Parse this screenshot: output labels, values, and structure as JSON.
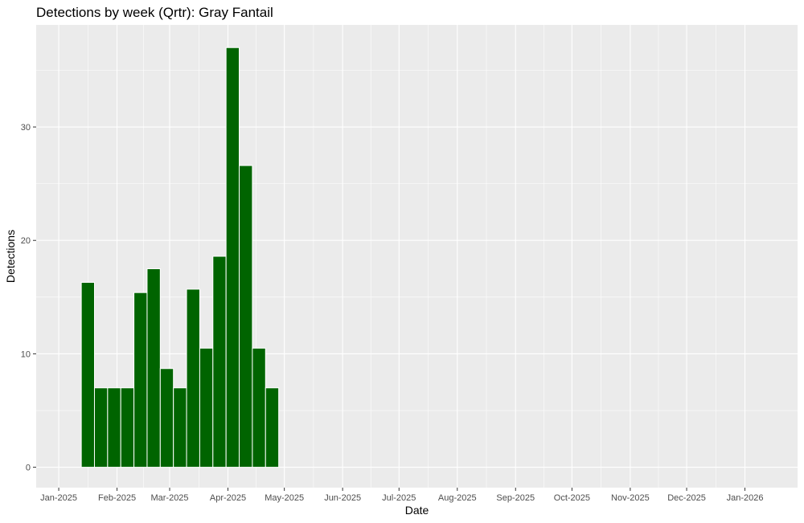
{
  "chart_data": {
    "type": "bar",
    "title": "Detections by week (Qrtr): Gray Fantail",
    "xlabel": "Date",
    "ylabel": "Detections",
    "x_ticks": [
      "Jan-2025",
      "Feb-2025",
      "Mar-2025",
      "Apr-2025",
      "May-2025",
      "Jun-2025",
      "Jul-2025",
      "Aug-2025",
      "Sep-2025",
      "Oct-2025",
      "Nov-2025",
      "Dec-2025",
      "Jan-2026"
    ],
    "y_ticks": [
      "0",
      "10",
      "20",
      "30"
    ],
    "ylim": [
      -1.8,
      39
    ],
    "bar_color": "#006400",
    "panel_color": "#ebebeb",
    "grid": true,
    "bars": [
      {
        "week_start": "2025-01-13",
        "value": 16.3
      },
      {
        "week_start": "2025-01-20",
        "value": 7
      },
      {
        "week_start": "2025-01-27",
        "value": 7
      },
      {
        "week_start": "2025-02-03",
        "value": 7
      },
      {
        "week_start": "2025-02-10",
        "value": 15.4
      },
      {
        "week_start": "2025-02-17",
        "value": 17.5
      },
      {
        "week_start": "2025-02-24",
        "value": 8.7
      },
      {
        "week_start": "2025-03-03",
        "value": 7
      },
      {
        "week_start": "2025-03-10",
        "value": 15.7
      },
      {
        "week_start": "2025-03-17",
        "value": 10.5
      },
      {
        "week_start": "2025-03-24",
        "value": 18.6
      },
      {
        "week_start": "2025-03-31",
        "value": 37
      },
      {
        "week_start": "2025-04-07",
        "value": 26.6
      },
      {
        "week_start": "2025-04-14",
        "value": 10.5
      },
      {
        "week_start": "2025-04-21",
        "value": 7
      }
    ]
  }
}
